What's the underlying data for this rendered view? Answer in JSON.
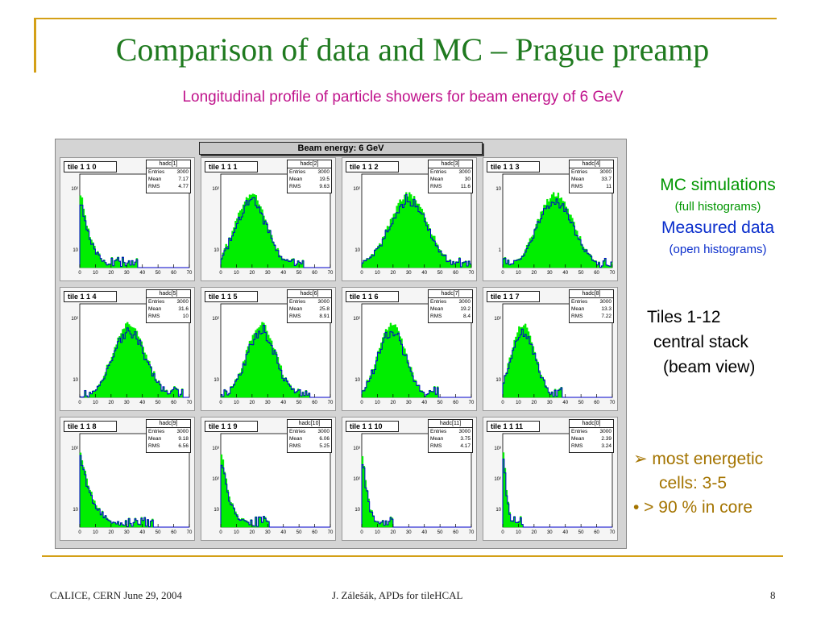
{
  "slide": {
    "title": "Comparison of data and MC – Prague preamp",
    "subtitle": "Longitudinal  profile of particle showers for beam energy of 6 GeV",
    "figure_title": "Beam energy: 6 GeV",
    "legend": {
      "mc": "MC simulations",
      "mc_sub": "(full histograms)",
      "data": "Measured data",
      "data_sub": "(open histograms)"
    },
    "tiles_text": [
      "Tiles 1-12",
      "central stack",
      "(beam view)"
    ],
    "notes": [
      "➢ most energetic",
      "cells: 3-5",
      "• > 90 % in core"
    ],
    "footer": {
      "left": "CALICE, CERN June 29, 2004",
      "center": "J. Zálešák, APDs for tileHCAL",
      "page": "8"
    },
    "colors": {
      "mc": "#00ee00",
      "data": "#0000cc",
      "accent": "#d4a017"
    }
  },
  "stats_labels": {
    "entries": "Entries",
    "mean": "Mean",
    "rms": "RMS"
  },
  "chart_data": {
    "type": "histogram-grid",
    "x_ticks": [
      "0",
      "10",
      "20",
      "30",
      "40",
      "50",
      "60",
      "70"
    ],
    "xlim": [
      0,
      70
    ],
    "panels": [
      {
        "tile": "tile 1 1 0",
        "hist": "hadc[1]",
        "entries": "3000",
        "mean": "7.17",
        "rms": "4.77",
        "y_ticks": [
          "10²",
          "10"
        ]
      },
      {
        "tile": "tile 1 1 1",
        "hist": "hadc[2]",
        "entries": "3000",
        "mean": "19.5",
        "rms": "9.63",
        "y_ticks": [
          "10²",
          "10"
        ]
      },
      {
        "tile": "tile 1 1 2",
        "hist": "hadc[3]",
        "entries": "3000",
        "mean": "30",
        "rms": "11.6",
        "y_ticks": [
          "10²",
          "10"
        ]
      },
      {
        "tile": "tile 1 1 3",
        "hist": "hadc[4]",
        "entries": "3000",
        "mean": "33.7",
        "rms": "11",
        "y_ticks": [
          "10",
          "1"
        ]
      },
      {
        "tile": "tile 1 1 4",
        "hist": "hadc[5]",
        "entries": "3000",
        "mean": "31.6",
        "rms": "10",
        "y_ticks": [
          "10²",
          "10"
        ]
      },
      {
        "tile": "tile 1 1 5",
        "hist": "hadc[6]",
        "entries": "3000",
        "mean": "25.8",
        "rms": "8.91",
        "y_ticks": [
          "10²",
          "10"
        ]
      },
      {
        "tile": "tile 1 1 6",
        "hist": "hadc[7]",
        "entries": "3000",
        "mean": "19.2",
        "rms": "8.4",
        "y_ticks": [
          "10²",
          "10"
        ]
      },
      {
        "tile": "tile 1 1 7",
        "hist": "hadc[8]",
        "entries": "3000",
        "mean": "13.3",
        "rms": "7.22",
        "y_ticks": [
          "10²",
          "10"
        ]
      },
      {
        "tile": "tile 1 1 8",
        "hist": "hadc[9]",
        "entries": "3000",
        "mean": "9.18",
        "rms": "6.56",
        "y_ticks": [
          "10²",
          "10"
        ]
      },
      {
        "tile": "tile 1 1 9",
        "hist": "hadc[10]",
        "entries": "3000",
        "mean": "6.06",
        "rms": "5.25",
        "y_ticks": [
          "10³",
          "10²",
          "10"
        ]
      },
      {
        "tile": "tile 1 1 10",
        "hist": "hadc[11]",
        "entries": "3000",
        "mean": "3.75",
        "rms": "4.17",
        "y_ticks": [
          "10³",
          "10²",
          "10"
        ]
      },
      {
        "tile": "tile 1 1 11",
        "hist": "hadc[0]",
        "entries": "3000",
        "mean": "2.39",
        "rms": "3.24",
        "y_ticks": [
          "10³",
          "10²",
          "10"
        ]
      }
    ]
  }
}
